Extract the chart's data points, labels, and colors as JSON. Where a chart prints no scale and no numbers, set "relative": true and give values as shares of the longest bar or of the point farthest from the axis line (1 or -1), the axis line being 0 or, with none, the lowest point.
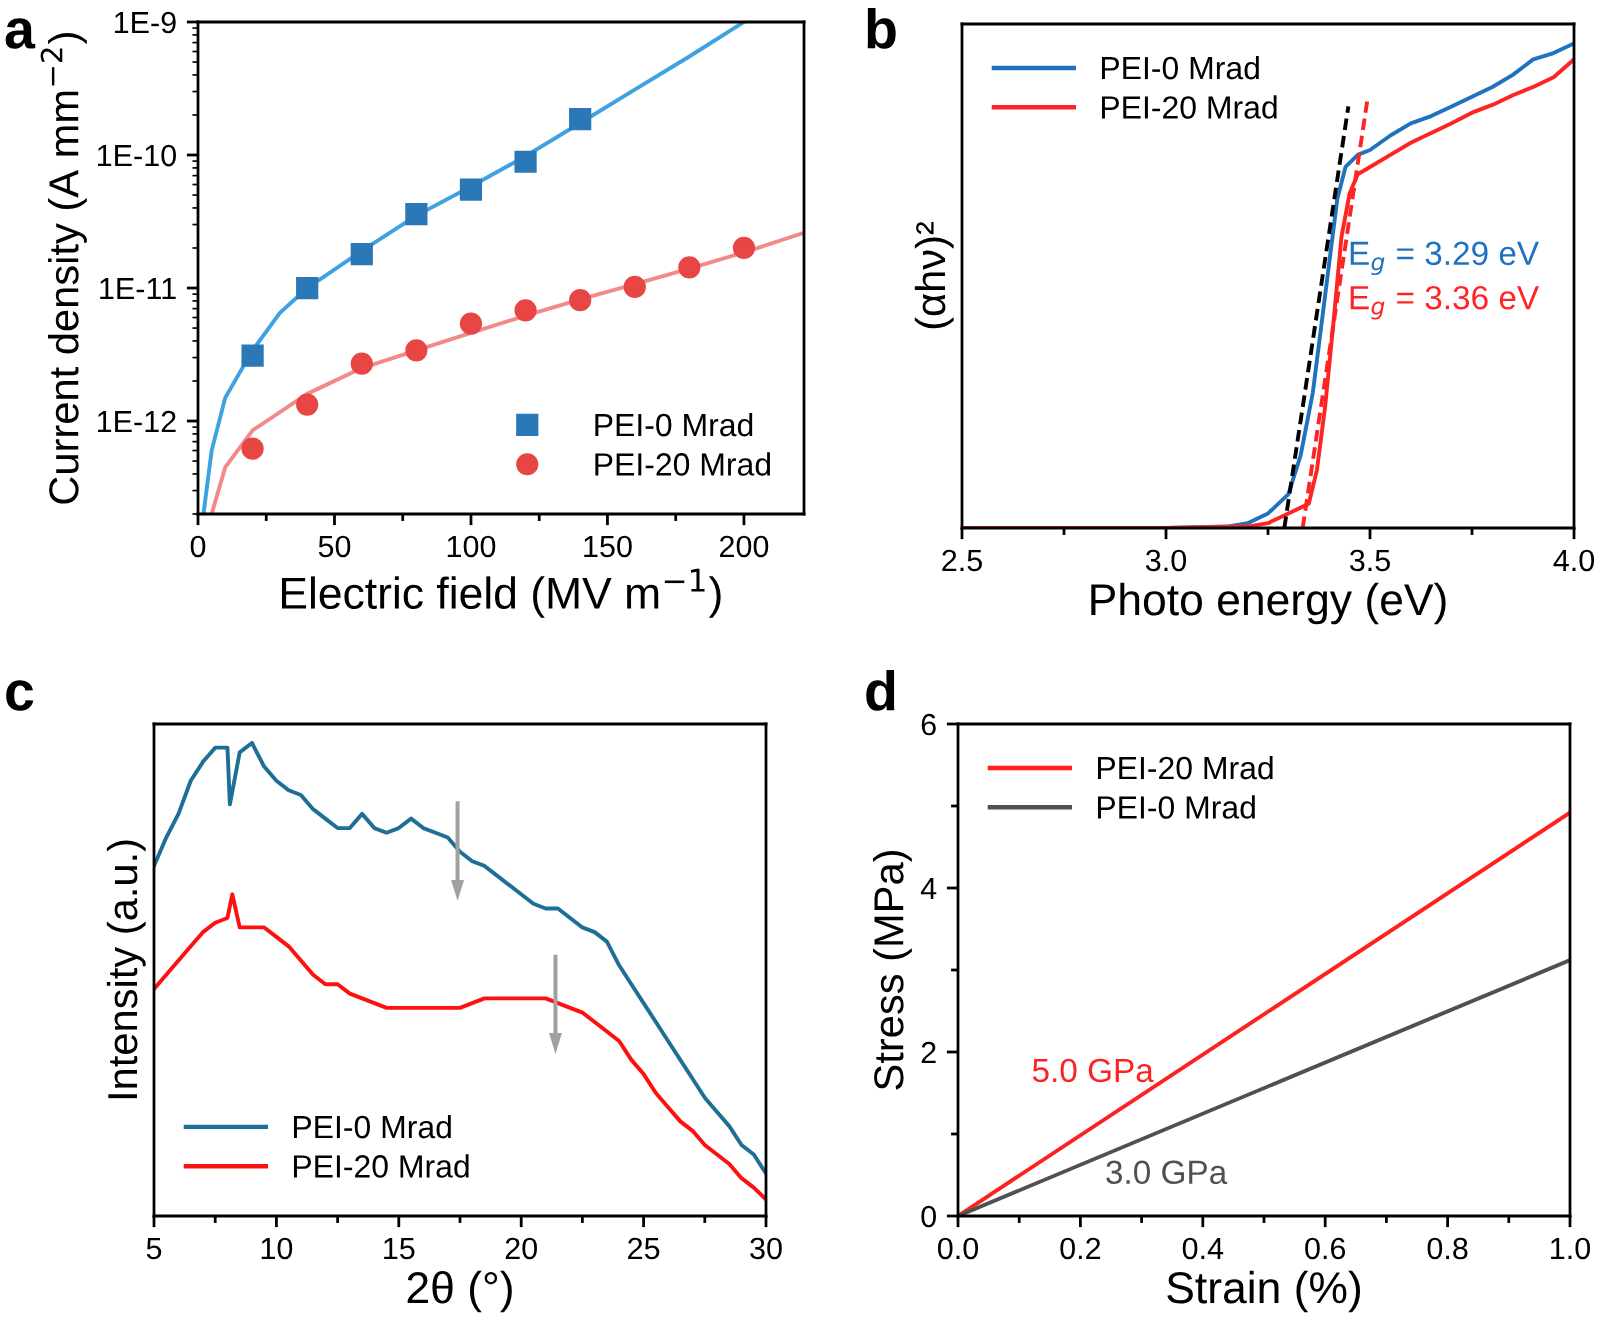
{
  "chart_data": [
    {
      "type": "scatter",
      "title": "a",
      "xlabel": "Electric field (MV m$^{−1}$)",
      "ylabel": "Current density (A mm$^{−2}$)",
      "log": "y",
      "legend": "bottom right",
      "xlim": [
        0,
        222
      ],
      "xticks": [
        0,
        {
          "value": 25,
          "label": null
        },
        50,
        {
          "value": 75,
          "label": null
        },
        100,
        {
          "value": 125,
          "label": null
        },
        150,
        {
          "value": 175,
          "label": null
        },
        200
      ],
      "ylim": [
        2e-13,
        1e-09
      ],
      "yticks": [
        {
          "value": 1e-12,
          "label": "1E-12"
        },
        {
          "value": 1e-11,
          "label": "1E-11"
        },
        {
          "value": 1e-10,
          "label": "1E-10"
        },
        {
          "value": 1e-09,
          "label": "1E-9"
        }
      ],
      "series": [
        {
          "name": "PEI-0 Mrad",
          "type": "scatter",
          "marker": "square",
          "color": "#2a78b8",
          "x": [
            20,
            40,
            60,
            80,
            100,
            120,
            140
          ],
          "values": [
            3.1e-12,
            1e-11,
            1.8e-11,
            3.6e-11,
            5.5e-11,
            8.9e-11,
            1.86e-10
          ]
        },
        {
          "type": "line",
          "marker": "none",
          "color": "#3ea2e2",
          "x": [
            2,
            5,
            10,
            20,
            30,
            40,
            60,
            80,
            100,
            120,
            140,
            160,
            180,
            200
          ],
          "values": [
            2e-13,
            6e-13,
            1.5e-12,
            3.4e-12,
            6.5e-12,
            1e-11,
            1.9e-11,
            3.5e-11,
            5.8e-11,
            9.8e-11,
            1.74e-10,
            3.1e-10,
            5.5e-10,
            1e-09
          ]
        },
        {
          "name": "PEI-20 Mrad",
          "type": "scatter",
          "marker": "circle",
          "color": "#e84545",
          "x": [
            20,
            40,
            60,
            80,
            100,
            120,
            140,
            160,
            180,
            200
          ],
          "values": [
            6.2e-13,
            1.33e-12,
            2.7e-12,
            3.4e-12,
            5.4e-12,
            6.8e-12,
            8.1e-12,
            1.02e-11,
            1.43e-11,
            2e-11
          ]
        },
        {
          "type": "line",
          "marker": "none",
          "color": "#f28a8a",
          "x": [
            5,
            10,
            20,
            40,
            60,
            80,
            100,
            120,
            140,
            160,
            180,
            200,
            222
          ],
          "values": [
            2e-13,
            4.5e-13,
            8.5e-13,
            1.6e-12,
            2.5e-12,
            3.4e-12,
            4.6e-12,
            6.2e-12,
            8.2e-12,
            1.07e-11,
            1.4e-11,
            1.85e-11,
            2.6e-11
          ]
        }
      ]
    },
    {
      "type": "line",
      "title": "b",
      "xlabel": "Photo energy (eV)",
      "ylabel": "(αhν)²",
      "relative": true,
      "tick_labels": "x",
      "legend": "top left",
      "xlim": [
        2.5,
        4.0
      ],
      "xticks": [
        2.5,
        {
          "value": 2.75,
          "label": null
        },
        {
          "value": 3,
          "label": "3.0"
        },
        {
          "value": 3.25,
          "label": null
        },
        3.5,
        {
          "value": 3.75,
          "label": null
        },
        {
          "value": 4,
          "label": "4.0"
        }
      ],
      "annotations": [
        "E$_{g}$ = 3.29 eV",
        "E$_{g}$ = 3.36 eV"
      ],
      "series": [
        {
          "name": "PEI-0 Mrad",
          "color": "#1f72c0",
          "line_style": "solid",
          "x": [
            2.5,
            3.0,
            3.15,
            3.2,
            3.25,
            3.3,
            3.33,
            3.36,
            3.39,
            3.42,
            3.44,
            3.47,
            3.5,
            3.55,
            3.6,
            3.65,
            3.7,
            3.75,
            3.8,
            3.85,
            3.9,
            3.95,
            4.0
          ],
          "values": [
            0,
            0,
            0.003,
            0.01,
            0.03,
            0.07,
            0.15,
            0.28,
            0.48,
            0.68,
            0.745,
            0.77,
            0.78,
            0.81,
            0.835,
            0.85,
            0.87,
            0.89,
            0.91,
            0.935,
            0.967,
            0.98,
            1
          ]
        },
        {
          "name": "PEI-20 Mrad",
          "color": "#ff2424",
          "line_style": "solid",
          "x": [
            2.5,
            3.0,
            3.2,
            3.25,
            3.3,
            3.35,
            3.37,
            3.39,
            3.41,
            3.43,
            3.45,
            3.47,
            3.5,
            3.55,
            3.6,
            3.65,
            3.7,
            3.75,
            3.8,
            3.85,
            3.9,
            3.95,
            4.0
          ],
          "values": [
            0,
            0,
            0.003,
            0.01,
            0.03,
            0.05,
            0.12,
            0.25,
            0.42,
            0.6,
            0.69,
            0.73,
            0.745,
            0.77,
            0.795,
            0.815,
            0.835,
            0.857,
            0.873,
            0.893,
            0.91,
            0.93,
            0.967
          ]
        },
        {
          "color": "#000000",
          "line_style": "dashed",
          "x": [
            3.29,
            3.447
          ],
          "values": [
            0,
            0.87
          ]
        },
        {
          "color": "#ff2424",
          "line_style": "dashed",
          "x": [
            3.335,
            3.493
          ],
          "values": [
            0,
            0.88
          ]
        }
      ]
    },
    {
      "type": "line",
      "title": "c",
      "xlabel": "2θ (°)",
      "ylabel": "Intensity (a.u.)",
      "relative": true,
      "tick_labels": "x",
      "legend": "bottom left",
      "xlim": [
        5,
        30
      ],
      "xticks": [
        5,
        {
          "value": 7.5,
          "label": null
        },
        10,
        {
          "value": 12.5,
          "label": null
        },
        15,
        {
          "value": 17.5,
          "label": null
        },
        20,
        {
          "value": 22.5,
          "label": null
        },
        25,
        {
          "value": 27.5,
          "label": null
        },
        30
      ],
      "series": [
        {
          "name": "PEI-0 Mrad",
          "color": "#1f6e96",
          "line_style": "solid",
          "x": [
            5,
            5.5,
            6,
            6.5,
            7,
            7.5,
            8,
            8.1,
            8.5,
            9,
            9.5,
            10,
            10.5,
            11,
            11.5,
            12,
            12.5,
            13,
            13.5,
            14,
            14.5,
            15,
            15.5,
            16,
            16.5,
            17,
            17.5,
            18,
            18.5,
            19,
            19.5,
            20,
            20.5,
            21,
            21.5,
            22,
            22.5,
            23,
            23.5,
            24,
            24.5,
            25,
            25.5,
            26,
            26.5,
            27,
            27.5,
            28,
            28.5,
            29,
            29.5,
            30
          ],
          "values": [
            0.74,
            0.8,
            0.85,
            0.92,
            0.96,
            0.99,
            0.99,
            0.87,
            0.98,
            1.0,
            0.95,
            0.92,
            0.9,
            0.89,
            0.86,
            0.84,
            0.82,
            0.82,
            0.85,
            0.82,
            0.81,
            0.82,
            0.84,
            0.82,
            0.81,
            0.8,
            0.77,
            0.75,
            0.74,
            0.72,
            0.7,
            0.68,
            0.66,
            0.65,
            0.65,
            0.63,
            0.61,
            0.6,
            0.58,
            0.53,
            0.49,
            0.45,
            0.41,
            0.37,
            0.33,
            0.29,
            0.25,
            0.22,
            0.19,
            0.15,
            0.13,
            0.09
          ]
        },
        {
          "name": "PEI-20 Mrad",
          "color": "#ff1010",
          "line_style": "solid",
          "x": [
            5,
            5.5,
            6,
            6.5,
            7,
            7.5,
            8,
            8.2,
            8.5,
            9,
            9.5,
            10,
            10.5,
            11,
            11.5,
            12,
            12.5,
            13,
            13.5,
            14,
            14.5,
            15,
            15.5,
            16,
            16.5,
            17,
            17.5,
            18,
            18.5,
            19,
            19.5,
            20,
            20.5,
            21,
            21.5,
            22,
            22.5,
            23,
            23.5,
            24,
            24.5,
            25,
            25.5,
            26,
            26.5,
            27,
            27.5,
            28,
            28.5,
            29,
            29.5,
            30
          ],
          "values": [
            0.48,
            0.51,
            0.54,
            0.57,
            0.6,
            0.62,
            0.63,
            0.68,
            0.61,
            0.61,
            0.61,
            0.59,
            0.57,
            0.54,
            0.51,
            0.49,
            0.49,
            0.47,
            0.46,
            0.45,
            0.44,
            0.44,
            0.44,
            0.44,
            0.44,
            0.44,
            0.44,
            0.45,
            0.46,
            0.46,
            0.46,
            0.46,
            0.46,
            0.46,
            0.45,
            0.44,
            0.43,
            0.41,
            0.39,
            0.37,
            0.33,
            0.3,
            0.26,
            0.23,
            0.2,
            0.18,
            0.15,
            0.13,
            0.11,
            0.08,
            0.06,
            0.035
          ]
        }
      ]
    },
    {
      "type": "line",
      "title": "d",
      "xlabel": "Strain (%)",
      "ylabel": "Stress (MPa)",
      "legend": "top left",
      "xlim": [
        0,
        1.0
      ],
      "xticks": [
        {
          "value": 0,
          "label": "0.0"
        },
        {
          "value": 0.1,
          "label": null
        },
        0.2,
        {
          "value": 0.3,
          "label": null
        },
        0.4,
        {
          "value": 0.5,
          "label": null
        },
        0.6,
        {
          "value": 0.7,
          "label": null
        },
        0.8,
        {
          "value": 0.9,
          "label": null
        },
        {
          "value": 1,
          "label": "1.0"
        }
      ],
      "ylim": [
        0,
        6
      ],
      "yticks": [
        0,
        {
          "value": 1,
          "label": null
        },
        2,
        {
          "value": 3,
          "label": null
        },
        4,
        {
          "value": 5,
          "label": null
        },
        6
      ],
      "annotations": [
        "5.0 GPa",
        "3.0 GPa"
      ],
      "series": [
        {
          "name": "PEI-20 Mrad",
          "color": "#ff2020",
          "line_style": "solid",
          "x": [
            0,
            1.0
          ],
          "values": [
            0,
            4.92
          ]
        },
        {
          "name": "PEI-0 Mrad",
          "color": "#505050",
          "line_style": "solid",
          "x": [
            0,
            1.0
          ],
          "values": [
            0,
            3.12
          ]
        }
      ]
    }
  ]
}
